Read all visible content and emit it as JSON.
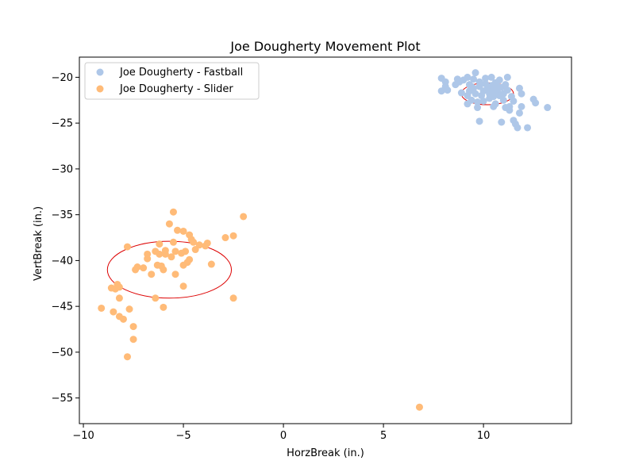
{
  "chart_data": {
    "type": "scatter",
    "title": "Joe Dougherty Movement Plot",
    "xlabel": "HorzBreak (in.)",
    "ylabel": "VertBreak (in.)",
    "xlim": [
      -10.2,
      14.4
    ],
    "ylim": [
      -57.8,
      -17.8
    ],
    "xticks": [
      -10,
      -5,
      0,
      5,
      10
    ],
    "yticks": [
      -20,
      -25,
      -30,
      -35,
      -40,
      -45,
      -50,
      -55
    ],
    "grid": false,
    "legend_position": "top-left",
    "series": [
      {
        "name": "Joe Dougherty - Fastball",
        "color": "#aec7e8",
        "points": [
          [
            7.9,
            -20.1
          ],
          [
            8.1,
            -20.5
          ],
          [
            8.1,
            -21.0
          ],
          [
            8.2,
            -21.4
          ],
          [
            7.9,
            -21.5
          ],
          [
            8.6,
            -20.8
          ],
          [
            8.7,
            -20.2
          ],
          [
            8.8,
            -20.5
          ],
          [
            8.9,
            -21.7
          ],
          [
            9.0,
            -20.3
          ],
          [
            9.2,
            -20.0
          ],
          [
            9.3,
            -20.8
          ],
          [
            9.3,
            -21.5
          ],
          [
            9.2,
            -22.0
          ],
          [
            9.4,
            -22.5
          ],
          [
            9.2,
            -22.9
          ],
          [
            9.5,
            -21.2
          ],
          [
            9.5,
            -20.2
          ],
          [
            9.6,
            -19.5
          ],
          [
            9.6,
            -21.8
          ],
          [
            9.7,
            -22.7
          ],
          [
            9.7,
            -23.3
          ],
          [
            9.8,
            -21.0
          ],
          [
            9.8,
            -20.5
          ],
          [
            9.9,
            -22.0
          ],
          [
            10.0,
            -21.5
          ],
          [
            10.1,
            -20.7
          ],
          [
            10.1,
            -20.1
          ],
          [
            10.2,
            -21.2
          ],
          [
            10.3,
            -21.8
          ],
          [
            10.3,
            -22.3
          ],
          [
            10.4,
            -20.0
          ],
          [
            10.4,
            -20.9
          ],
          [
            10.5,
            -21.4
          ],
          [
            10.5,
            -22.1
          ],
          [
            10.6,
            -22.9
          ],
          [
            10.6,
            -20.6
          ],
          [
            10.7,
            -21.6
          ],
          [
            10.8,
            -20.3
          ],
          [
            10.8,
            -22.0
          ],
          [
            10.9,
            -21.1
          ],
          [
            11.0,
            -21.8
          ],
          [
            11.0,
            -22.5
          ],
          [
            11.1,
            -20.8
          ],
          [
            11.2,
            -21.4
          ],
          [
            11.2,
            -20.0
          ],
          [
            11.3,
            -23.2
          ],
          [
            11.4,
            -22.1
          ],
          [
            11.5,
            -22.6
          ],
          [
            11.3,
            -23.6
          ],
          [
            11.5,
            -24.7
          ],
          [
            11.6,
            -25.1
          ],
          [
            11.7,
            -25.5
          ],
          [
            11.8,
            -23.9
          ],
          [
            11.8,
            -21.2
          ],
          [
            11.9,
            -23.2
          ],
          [
            11.9,
            -21.8
          ],
          [
            12.2,
            -25.5
          ],
          [
            12.5,
            -22.4
          ],
          [
            12.6,
            -22.8
          ],
          [
            13.2,
            -23.3
          ],
          [
            9.8,
            -24.8
          ],
          [
            10.9,
            -24.9
          ],
          [
            10.5,
            -23.2
          ],
          [
            11.1,
            -23.3
          ],
          [
            9.4,
            -21.0
          ],
          [
            10.0,
            -22.6
          ],
          [
            10.7,
            -21.0
          ]
        ]
      },
      {
        "name": "Joe Dougherty - Slider",
        "color": "#ffbb78",
        "points": [
          [
            -9.1,
            -45.2
          ],
          [
            -8.6,
            -43.0
          ],
          [
            -8.5,
            -45.6
          ],
          [
            -8.4,
            -43.1
          ],
          [
            -8.3,
            -42.6
          ],
          [
            -8.2,
            -42.9
          ],
          [
            -8.2,
            -46.1
          ],
          [
            -8.2,
            -44.1
          ],
          [
            -8.0,
            -46.4
          ],
          [
            -7.8,
            -50.5
          ],
          [
            -7.8,
            -38.5
          ],
          [
            -7.7,
            -45.3
          ],
          [
            -7.5,
            -47.2
          ],
          [
            -7.5,
            -48.6
          ],
          [
            -7.4,
            -41.0
          ],
          [
            -7.3,
            -40.7
          ],
          [
            -7.0,
            -40.8
          ],
          [
            -6.8,
            -39.8
          ],
          [
            -6.8,
            -39.3
          ],
          [
            -6.6,
            -41.5
          ],
          [
            -6.4,
            -44.1
          ],
          [
            -6.4,
            -39.0
          ],
          [
            -6.3,
            -40.5
          ],
          [
            -6.2,
            -39.3
          ],
          [
            -6.2,
            -38.2
          ],
          [
            -6.1,
            -40.6
          ],
          [
            -6.0,
            -45.1
          ],
          [
            -6.0,
            -41.0
          ],
          [
            -5.9,
            -38.9
          ],
          [
            -5.9,
            -39.3
          ],
          [
            -5.7,
            -36.0
          ],
          [
            -5.6,
            -39.6
          ],
          [
            -5.5,
            -38.0
          ],
          [
            -5.5,
            -34.7
          ],
          [
            -5.4,
            -41.5
          ],
          [
            -5.4,
            -39.0
          ],
          [
            -5.3,
            -36.7
          ],
          [
            -5.1,
            -39.2
          ],
          [
            -5.0,
            -36.8
          ],
          [
            -5.0,
            -40.5
          ],
          [
            -5.0,
            -42.8
          ],
          [
            -4.9,
            -39.0
          ],
          [
            -4.8,
            -40.2
          ],
          [
            -4.7,
            -39.9
          ],
          [
            -4.7,
            -37.2
          ],
          [
            -4.6,
            -37.7
          ],
          [
            -4.5,
            -38.0
          ],
          [
            -4.4,
            -38.8
          ],
          [
            -4.2,
            -38.3
          ],
          [
            -3.9,
            -38.4
          ],
          [
            -3.8,
            -38.1
          ],
          [
            -3.6,
            -40.4
          ],
          [
            -2.9,
            -37.5
          ],
          [
            -2.5,
            -37.3
          ],
          [
            -2.5,
            -44.1
          ],
          [
            -2.0,
            -35.2
          ],
          [
            6.8,
            -56.0
          ]
        ]
      }
    ],
    "ellipses": [
      {
        "series": "Joe Dougherty - Fastball",
        "center": [
          10.2,
          -21.8
        ],
        "radius_x": 1.3,
        "radius_y": 1.2,
        "color": "#dd0000"
      },
      {
        "series": "Joe Dougherty - Slider",
        "center": [
          -5.7,
          -41.0
        ],
        "radius_x": 3.1,
        "radius_y": 3.1,
        "color": "#dd0000"
      }
    ]
  }
}
